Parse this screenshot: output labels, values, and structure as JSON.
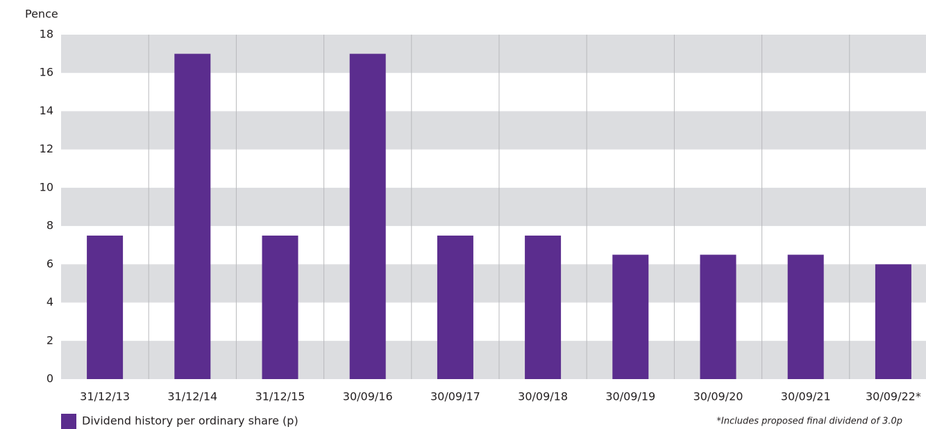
{
  "chart_data": {
    "type": "bar",
    "ylabel": "Pence",
    "categories": [
      "31/12/13",
      "31/12/14",
      "31/12/15",
      "30/09/16",
      "30/09/17",
      "30/09/18",
      "30/09/19",
      "30/09/20",
      "30/09/21",
      "30/09/22*"
    ],
    "series": [
      {
        "name": "Dividend history per ordinary share (p)",
        "color": "#5b2d8e",
        "values": [
          7.5,
          17,
          7.5,
          17,
          7.5,
          7.5,
          6.5,
          6.5,
          6.5,
          6
        ]
      }
    ],
    "ylim": [
      0,
      18
    ],
    "yticks": [
      0,
      2,
      4,
      6,
      8,
      10,
      12,
      14,
      16,
      18
    ],
    "grid": true,
    "note": "*Includes proposed final dividend of 3.0p"
  }
}
